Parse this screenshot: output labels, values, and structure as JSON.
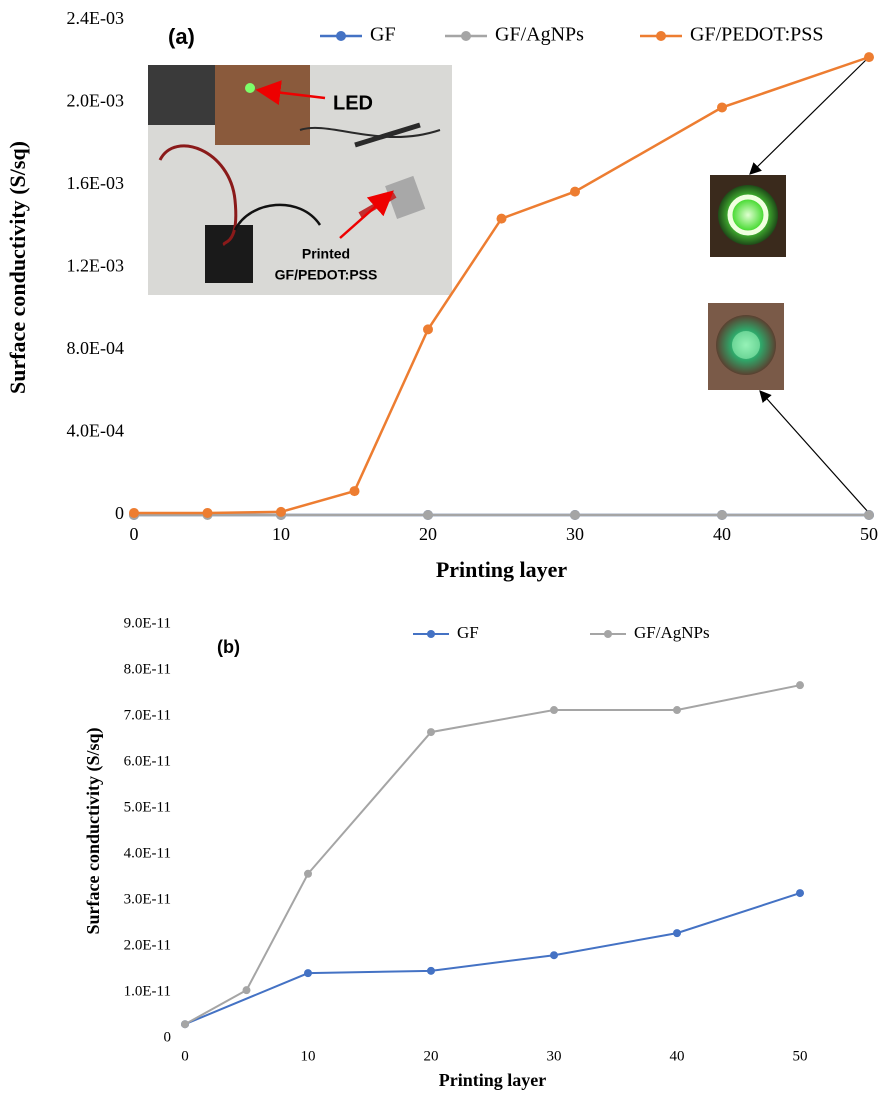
{
  "chart_data": [
    {
      "type": "line",
      "panel_label": "(a)",
      "x_label": "Printing layer",
      "y_label": "Surface conductivity (S/sq)",
      "xlim": [
        0,
        50
      ],
      "xticks": [
        0,
        10,
        20,
        30,
        40,
        50
      ],
      "ylim": [
        0,
        0.0024
      ],
      "yticks": [
        0,
        {
          "value": 0.0004,
          "label": "4.0E-04"
        },
        {
          "value": 0.0008,
          "label": "8.0E-04"
        },
        {
          "value": 0.0012,
          "label": "1.2E-03"
        },
        {
          "value": 0.0016,
          "label": "1.6E-03"
        },
        {
          "value": 0.002,
          "label": "2.0E-03"
        },
        {
          "value": 0.0024,
          "label": "2.4E-03"
        }
      ],
      "series": [
        {
          "name": "GF",
          "color": "#4472c4",
          "x": [
            0,
            10,
            20,
            30,
            40,
            50
          ],
          "values": [
            3e-12,
            1.41e-11,
            1.46e-11,
            1.8e-11,
            2.28e-11,
            3.15e-11
          ]
        },
        {
          "name": "GF/AgNPs",
          "color": "#a5a5a5",
          "x": [
            0,
            5,
            10,
            20,
            30,
            40,
            50
          ],
          "values": [
            3e-12,
            1.04e-11,
            3.57e-11,
            6.65e-11,
            7.13e-11,
            7.13e-11,
            7.67e-11
          ]
        },
        {
          "name": "GF/PEDOT:PSS",
          "color": "#ed7d31",
          "x": [
            0,
            5,
            10,
            15,
            20,
            25,
            30,
            40,
            50
          ],
          "values": [
            1e-05,
            1e-05,
            1.5e-05,
            0.000116,
            0.0009,
            0.001437,
            0.001568,
            0.001976,
            0.00222
          ]
        }
      ],
      "annotations": [
        "LED",
        "Printed",
        "GF/PEDOT:PSS"
      ]
    },
    {
      "type": "line",
      "panel_label": "(b)",
      "x_label": "Printing layer",
      "y_label": "Surface conductivity (S/sq)",
      "xlim": [
        0,
        50
      ],
      "xticks": [
        0,
        10,
        20,
        30,
        40,
        50
      ],
      "ylim": [
        0,
        9e-11
      ],
      "yticks": [
        0,
        {
          "value": 1e-11,
          "label": "1.0E-11"
        },
        {
          "value": 2e-11,
          "label": "2.0E-11"
        },
        {
          "value": 3e-11,
          "label": "3.0E-11"
        },
        {
          "value": 4e-11,
          "label": "4.0E-11"
        },
        {
          "value": 5e-11,
          "label": "5.0E-11"
        },
        {
          "value": 6e-11,
          "label": "6.0E-11"
        },
        {
          "value": 7e-11,
          "label": "7.0E-11"
        },
        {
          "value": 8e-11,
          "label": "8.0E-11"
        },
        {
          "value": 9e-11,
          "label": "9.0E-11"
        }
      ],
      "series": [
        {
          "name": "GF",
          "color": "#4472c4",
          "x": [
            0,
            10,
            20,
            30,
            40,
            50
          ],
          "values": [
            3e-12,
            1.41e-11,
            1.46e-11,
            1.8e-11,
            2.28e-11,
            3.15e-11
          ]
        },
        {
          "name": "GF/AgNPs",
          "color": "#a5a5a5",
          "x": [
            0,
            5,
            10,
            20,
            30,
            40,
            50
          ],
          "values": [
            3e-12,
            1.04e-11,
            3.57e-11,
            6.65e-11,
            7.13e-11,
            7.13e-11,
            7.67e-11
          ]
        }
      ]
    }
  ]
}
